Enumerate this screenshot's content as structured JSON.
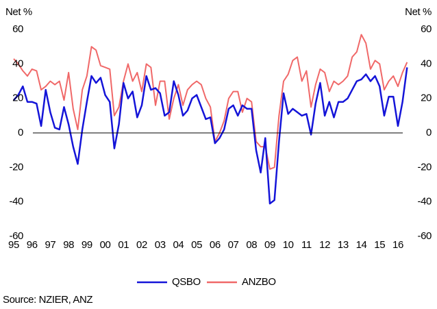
{
  "chart_data": {
    "type": "line",
    "y_label": "Net %",
    "y2_label": "Net %",
    "source": "Source: NZIER, ANZ",
    "x": [
      1995,
      1995.25,
      1995.5,
      1995.75,
      1996,
      1996.25,
      1996.5,
      1996.75,
      1997,
      1997.25,
      1997.5,
      1997.75,
      1998,
      1998.25,
      1998.5,
      1998.75,
      1999,
      1999.25,
      1999.5,
      1999.75,
      2000,
      2000.25,
      2000.5,
      2000.75,
      2001,
      2001.25,
      2001.5,
      2001.75,
      2002,
      2002.25,
      2002.5,
      2002.75,
      2003,
      2003.25,
      2003.5,
      2003.75,
      2004,
      2004.25,
      2004.5,
      2004.75,
      2005,
      2005.25,
      2005.5,
      2005.75,
      2006,
      2006.25,
      2006.5,
      2006.75,
      2007,
      2007.25,
      2007.5,
      2007.75,
      2008,
      2008.25,
      2008.5,
      2008.75,
      2009,
      2009.25,
      2009.5,
      2009.75,
      2010,
      2010.25,
      2010.5,
      2010.75,
      2011,
      2011.25,
      2011.5,
      2011.75,
      2012,
      2012.25,
      2012.5,
      2012.75,
      2013,
      2013.25,
      2013.5,
      2013.75,
      2014,
      2014.25,
      2014.5,
      2014.75,
      2015,
      2015.25,
      2015.5,
      2015.75,
      2016,
      2016.25,
      2016.5
    ],
    "series": [
      {
        "name": "QSBO",
        "color": "#1414d8",
        "values": [
          19,
          22,
          27,
          18,
          18,
          17,
          4,
          25,
          12,
          3,
          2,
          15,
          5,
          -8,
          -18,
          2,
          18,
          33,
          29,
          32,
          22,
          18,
          -9,
          5,
          29,
          20,
          24,
          9,
          16,
          33,
          25,
          26,
          23,
          10,
          12,
          30,
          22,
          10,
          13,
          20,
          22,
          15,
          8,
          9,
          -6,
          -3,
          2,
          14,
          16,
          10,
          16,
          14,
          14,
          -10,
          -23,
          -3,
          -41,
          -39,
          -5,
          23,
          11,
          14,
          12,
          10,
          11,
          -1,
          17,
          29,
          10,
          18,
          9,
          18,
          18,
          20,
          25,
          30,
          31,
          34,
          30,
          33,
          27,
          10,
          21,
          21,
          4,
          18,
          38
        ]
      },
      {
        "name": "ANZBO",
        "color": "#f06868",
        "values": [
          43,
          40,
          36,
          33,
          37,
          36,
          25,
          27,
          30,
          28,
          30,
          19,
          35,
          14,
          2,
          25,
          33,
          50,
          48,
          39,
          38,
          37,
          10,
          15,
          30,
          40,
          30,
          35,
          24,
          40,
          38,
          16,
          30,
          30,
          8,
          20,
          28,
          16,
          25,
          28,
          30,
          28,
          20,
          15,
          -5,
          0,
          7,
          20,
          24,
          24,
          12,
          20,
          18,
          -5,
          -8,
          -8,
          -21,
          -20,
          10,
          30,
          34,
          42,
          44,
          30,
          36,
          15,
          28,
          37,
          35,
          24,
          30,
          28,
          30,
          33,
          44,
          47,
          57,
          52,
          37,
          42,
          40,
          25,
          30,
          33,
          27,
          35,
          41
        ]
      }
    ],
    "xlim": [
      1995,
      2016.75
    ],
    "xticks": [
      {
        "value": 1995,
        "label": "95"
      },
      {
        "value": 1996,
        "label": "96"
      },
      {
        "value": 1997,
        "label": "97"
      },
      {
        "value": 1998,
        "label": "98"
      },
      {
        "value": 1999,
        "label": "99"
      },
      {
        "value": 2000,
        "label": "00"
      },
      {
        "value": 2001,
        "label": "01"
      },
      {
        "value": 2002,
        "label": "02"
      },
      {
        "value": 2003,
        "label": "03"
      },
      {
        "value": 2004,
        "label": "04"
      },
      {
        "value": 2005,
        "label": "05"
      },
      {
        "value": 2006,
        "label": "06"
      },
      {
        "value": 2007,
        "label": "07"
      },
      {
        "value": 2008,
        "label": "08"
      },
      {
        "value": 2009,
        "label": "09"
      },
      {
        "value": 2010,
        "label": "10"
      },
      {
        "value": 2011,
        "label": "11"
      },
      {
        "value": 2012,
        "label": "12"
      },
      {
        "value": 2013,
        "label": "13"
      },
      {
        "value": 2014,
        "label": "14"
      },
      {
        "value": 2015,
        "label": "15"
      },
      {
        "value": 2016,
        "label": "16"
      }
    ],
    "ylim": [
      -60,
      60
    ],
    "yticks": [
      -60,
      -40,
      -20,
      0,
      20,
      40,
      60
    ],
    "y2lim": [
      -60,
      60
    ],
    "y2ticks": [
      -60,
      -40,
      -20,
      0,
      20,
      40,
      60
    ],
    "legend": "bottom"
  }
}
